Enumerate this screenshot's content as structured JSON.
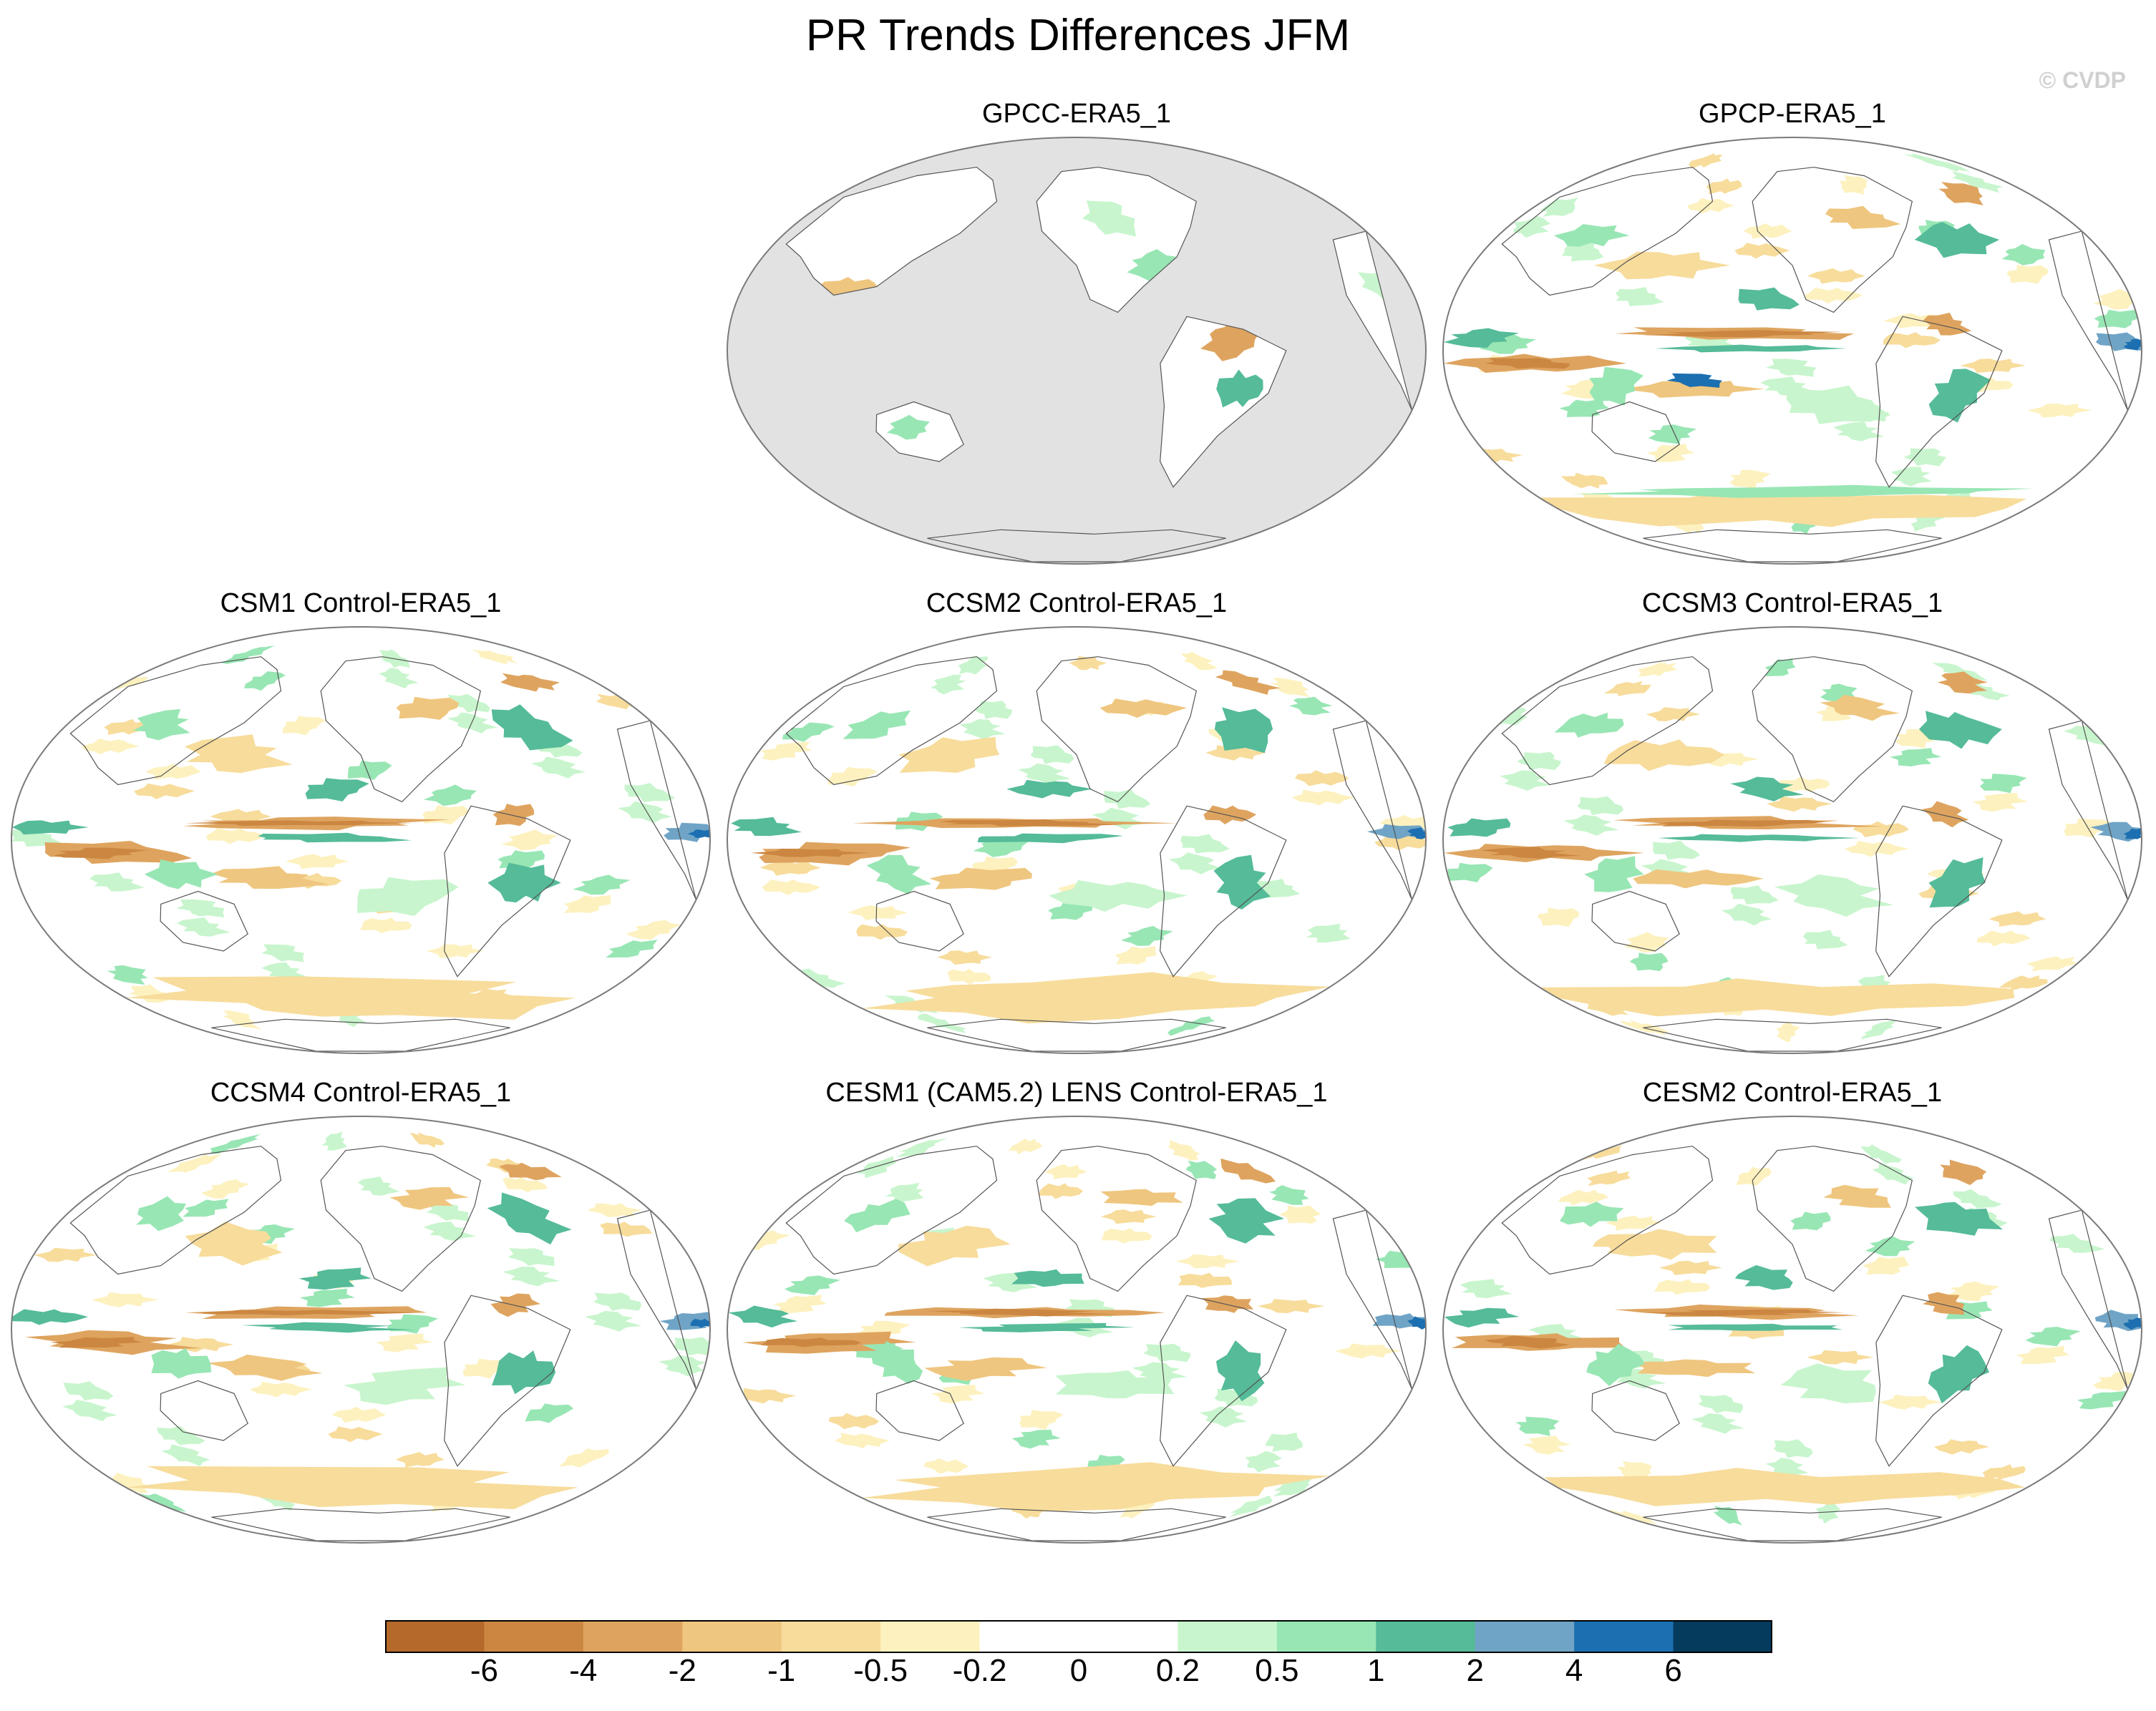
{
  "title": "PR Trends Differences JFM",
  "credit": "© CVDP",
  "panels": [
    {
      "title": "GPCC-ERA5_1",
      "ocean_masked": true
    },
    {
      "title": "GPCP-ERA5_1",
      "ocean_masked": false
    },
    {
      "title": "CSM1 Control-ERA5_1",
      "ocean_masked": false
    },
    {
      "title": "CCSM2 Control-ERA5_1",
      "ocean_masked": false
    },
    {
      "title": "CCSM3 Control-ERA5_1",
      "ocean_masked": false
    },
    {
      "title": "CCSM4 Control-ERA5_1",
      "ocean_masked": false
    },
    {
      "title": "CESM1 (CAM5.2) LENS Control-ERA5_1",
      "ocean_masked": false
    },
    {
      "title": "CESM2 Control-ERA5_1",
      "ocean_masked": false
    }
  ],
  "colorbar": {
    "levels": [
      "-6",
      "-4",
      "-2",
      "-1",
      "-0.5",
      "-0.2",
      "0",
      "0.2",
      "0.5",
      "1",
      "2",
      "4",
      "6"
    ],
    "colors": [
      "#b5692b",
      "#cb8741",
      "#dea45f",
      "#efc67f",
      "#f7dc9b",
      "#fdf1bf",
      "#ffffff",
      "#ffffff",
      "#c8f5cd",
      "#98e6b4",
      "#55bb98",
      "#6fa4c6",
      "#1c6fb0",
      "#053c5e"
    ]
  }
}
